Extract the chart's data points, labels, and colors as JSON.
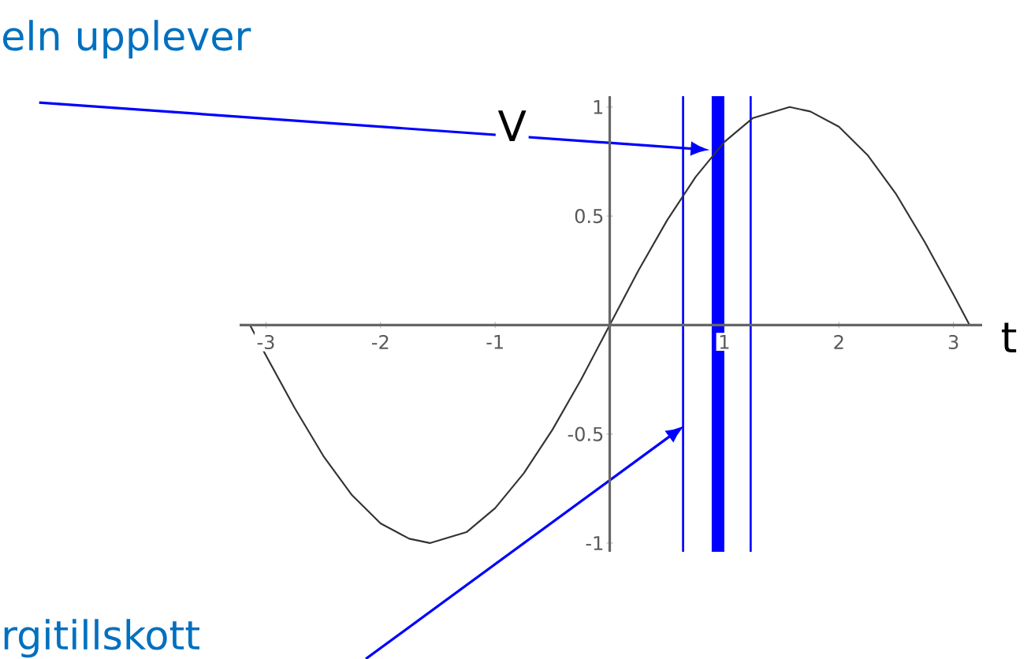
{
  "chart_data": {
    "type": "line",
    "xlabel": "t",
    "ylabel": "V",
    "x": [
      -3.14,
      -3,
      -2.75,
      -2.5,
      -2.25,
      -2,
      -1.75,
      -1.57,
      -1.25,
      -1,
      -0.75,
      -0.5,
      -0.25,
      0,
      0.25,
      0.5,
      0.75,
      1,
      1.25,
      1.57,
      1.75,
      2,
      2.25,
      2.5,
      2.75,
      3,
      3.14
    ],
    "series": [
      {
        "color": "#333333",
        "values": [
          0,
          -0.14,
          -0.38,
          -0.6,
          -0.78,
          -0.91,
          -0.98,
          -1,
          -0.95,
          -0.84,
          -0.68,
          -0.48,
          -0.25,
          0,
          0.25,
          0.48,
          0.68,
          0.84,
          0.95,
          1,
          0.98,
          0.91,
          0.78,
          0.6,
          0.38,
          0.14,
          0
        ]
      }
    ],
    "xlim": [
      -3.23,
      3.25
    ],
    "ylim": [
      -1.04,
      1.05
    ],
    "xticks": [
      -3,
      -2,
      -1,
      1,
      2,
      3
    ],
    "yticks": [
      -1,
      -0.5,
      0.5,
      1
    ],
    "ref_lines": [
      {
        "axis": "x",
        "value": 0.64,
        "color": "#0000ff"
      },
      {
        "axis": "x",
        "value": 1.23,
        "color": "#0000ff"
      }
    ],
    "bands": [
      {
        "axis": "x",
        "from": 0.89,
        "to": 1.0,
        "color": "#0000ff"
      }
    ],
    "annotations": [
      "eln upplever",
      "rgitillskott"
    ],
    "grid": false,
    "marker": "none",
    "line_style": "solid"
  }
}
